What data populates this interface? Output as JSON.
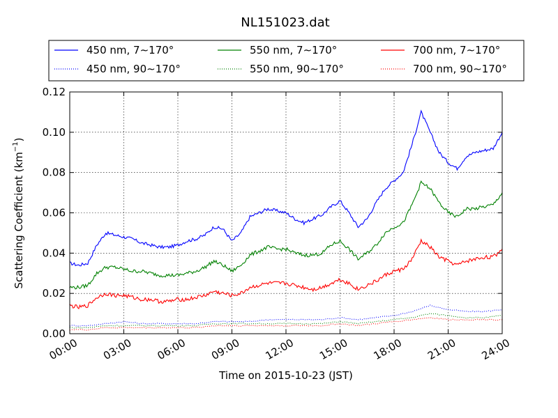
{
  "chart_data": {
    "type": "line",
    "title": "NL151023.dat",
    "xlabel": "Time on 2015-10-23 (JST)",
    "ylabel": "Scattering Coefficient (km",
    "ylabel_sup": "−1",
    "ylabel_end": ")",
    "xlim": [
      0,
      24
    ],
    "ylim": [
      0.0,
      0.12
    ],
    "x_ticks": [
      0,
      3,
      6,
      9,
      12,
      15,
      18,
      21,
      24
    ],
    "x_tick_labels": [
      "00:00",
      "03:00",
      "06:00",
      "09:00",
      "12:00",
      "15:00",
      "18:00",
      "21:00",
      "24:00"
    ],
    "y_ticks": [
      0.0,
      0.02,
      0.04,
      0.06,
      0.08,
      0.1,
      0.12
    ],
    "y_tick_labels": [
      "0.00",
      "0.02",
      "0.04",
      "0.06",
      "0.08",
      "0.10",
      "0.12"
    ],
    "grid": true,
    "legend_position": "above plot",
    "x_unit": "hours",
    "series": [
      {
        "name": "450 nm, 7∼170°",
        "color": "#0000ff",
        "style": "solid",
        "x": [
          0,
          0.5,
          1,
          1.5,
          2,
          2.5,
          3,
          3.5,
          4,
          4.5,
          5,
          5.5,
          6,
          6.5,
          7,
          7.5,
          8,
          8.5,
          9,
          9.5,
          10,
          10.5,
          11,
          11.5,
          12,
          12.5,
          13,
          13.5,
          14,
          14.5,
          15,
          15.5,
          16,
          16.5,
          17,
          17.5,
          18,
          18.5,
          19,
          19.5,
          20,
          20.5,
          21,
          21.5,
          22,
          22.5,
          23,
          23.5,
          24
        ],
        "y": [
          0.035,
          0.034,
          0.035,
          0.044,
          0.05,
          0.049,
          0.048,
          0.047,
          0.045,
          0.044,
          0.043,
          0.043,
          0.044,
          0.046,
          0.047,
          0.049,
          0.053,
          0.052,
          0.046,
          0.05,
          0.058,
          0.06,
          0.062,
          0.061,
          0.06,
          0.057,
          0.055,
          0.057,
          0.059,
          0.063,
          0.066,
          0.06,
          0.053,
          0.057,
          0.065,
          0.072,
          0.076,
          0.08,
          0.094,
          0.11,
          0.1,
          0.09,
          0.085,
          0.082,
          0.088,
          0.09,
          0.091,
          0.092,
          0.1
        ]
      },
      {
        "name": "450 nm, 90∼170°",
        "color": "#0000ff",
        "style": "dotted",
        "x": [
          0,
          1,
          2,
          3,
          4,
          5,
          6,
          7,
          8,
          9,
          10,
          11,
          12,
          13,
          14,
          15,
          16,
          17,
          18,
          19,
          20,
          21,
          22,
          23,
          24
        ],
        "y": [
          0.004,
          0.004,
          0.005,
          0.006,
          0.005,
          0.005,
          0.005,
          0.005,
          0.006,
          0.006,
          0.006,
          0.007,
          0.007,
          0.007,
          0.007,
          0.008,
          0.007,
          0.008,
          0.009,
          0.011,
          0.014,
          0.012,
          0.011,
          0.011,
          0.012
        ]
      },
      {
        "name": "550 nm, 7∼170°",
        "color": "#008000",
        "style": "solid",
        "x": [
          0,
          0.5,
          1,
          1.5,
          2,
          2.5,
          3,
          3.5,
          4,
          4.5,
          5,
          5.5,
          6,
          6.5,
          7,
          7.5,
          8,
          8.5,
          9,
          9.5,
          10,
          10.5,
          11,
          11.5,
          12,
          12.5,
          13,
          13.5,
          14,
          14.5,
          15,
          15.5,
          16,
          16.5,
          17,
          17.5,
          18,
          18.5,
          19,
          19.5,
          20,
          20.5,
          21,
          21.5,
          22,
          22.5,
          23,
          23.5,
          24
        ],
        "y": [
          0.023,
          0.023,
          0.024,
          0.03,
          0.033,
          0.033,
          0.032,
          0.031,
          0.031,
          0.03,
          0.029,
          0.029,
          0.029,
          0.03,
          0.031,
          0.033,
          0.036,
          0.034,
          0.031,
          0.034,
          0.039,
          0.041,
          0.043,
          0.042,
          0.042,
          0.04,
          0.039,
          0.039,
          0.04,
          0.044,
          0.046,
          0.042,
          0.037,
          0.04,
          0.044,
          0.05,
          0.053,
          0.055,
          0.064,
          0.075,
          0.072,
          0.065,
          0.06,
          0.058,
          0.062,
          0.062,
          0.063,
          0.064,
          0.07
        ]
      },
      {
        "name": "550 nm, 90∼170°",
        "color": "#008000",
        "style": "dotted",
        "x": [
          0,
          1,
          2,
          3,
          4,
          5,
          6,
          7,
          8,
          9,
          10,
          11,
          12,
          13,
          14,
          15,
          16,
          17,
          18,
          19,
          20,
          21,
          22,
          23,
          24
        ],
        "y": [
          0.003,
          0.003,
          0.004,
          0.004,
          0.004,
          0.004,
          0.004,
          0.004,
          0.005,
          0.005,
          0.005,
          0.005,
          0.005,
          0.005,
          0.005,
          0.006,
          0.005,
          0.006,
          0.007,
          0.008,
          0.01,
          0.009,
          0.008,
          0.008,
          0.009
        ]
      },
      {
        "name": "700 nm, 7∼170°",
        "color": "#ff0000",
        "style": "solid",
        "x": [
          0,
          0.5,
          1,
          1.5,
          2,
          2.5,
          3,
          3.5,
          4,
          4.5,
          5,
          5.5,
          6,
          6.5,
          7,
          7.5,
          8,
          8.5,
          9,
          9.5,
          10,
          10.5,
          11,
          11.5,
          12,
          12.5,
          13,
          13.5,
          14,
          14.5,
          15,
          15.5,
          16,
          16.5,
          17,
          17.5,
          18,
          18.5,
          19,
          19.5,
          20,
          20.5,
          21,
          21.5,
          22,
          22.5,
          23,
          23.5,
          24
        ],
        "y": [
          0.014,
          0.013,
          0.014,
          0.018,
          0.02,
          0.019,
          0.019,
          0.018,
          0.017,
          0.017,
          0.016,
          0.016,
          0.017,
          0.017,
          0.018,
          0.019,
          0.021,
          0.02,
          0.019,
          0.02,
          0.023,
          0.024,
          0.025,
          0.025,
          0.025,
          0.024,
          0.023,
          0.022,
          0.023,
          0.025,
          0.027,
          0.025,
          0.022,
          0.024,
          0.026,
          0.029,
          0.031,
          0.032,
          0.037,
          0.046,
          0.043,
          0.038,
          0.036,
          0.034,
          0.036,
          0.037,
          0.038,
          0.038,
          0.042
        ]
      },
      {
        "name": "700 nm, 90∼170°",
        "color": "#ff0000",
        "style": "dotted",
        "x": [
          0,
          1,
          2,
          3,
          4,
          5,
          6,
          7,
          8,
          9,
          10,
          11,
          12,
          13,
          14,
          15,
          16,
          17,
          18,
          19,
          20,
          21,
          22,
          23,
          24
        ],
        "y": [
          0.002,
          0.002,
          0.003,
          0.003,
          0.003,
          0.003,
          0.003,
          0.003,
          0.004,
          0.004,
          0.004,
          0.004,
          0.004,
          0.004,
          0.004,
          0.005,
          0.004,
          0.005,
          0.006,
          0.007,
          0.008,
          0.007,
          0.007,
          0.007,
          0.007
        ]
      }
    ]
  }
}
